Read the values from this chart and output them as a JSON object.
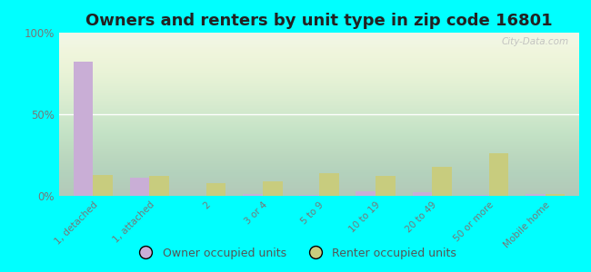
{
  "title": "Owners and renters by unit type in zip code 16801",
  "categories": [
    "1, detached",
    "1, attached",
    "2",
    "3 or 4",
    "5 to 9",
    "10 to 19",
    "20 to 49",
    "50 or more",
    "Mobile home"
  ],
  "owner_values": [
    82,
    11,
    0,
    1,
    0.5,
    3,
    2,
    0.5,
    1
  ],
  "renter_values": [
    13,
    12,
    8,
    9,
    14,
    12,
    18,
    26,
    1
  ],
  "owner_color": "#c9aed6",
  "renter_color": "#c8cc7e",
  "background_color": "#00ffff",
  "title_fontsize": 13,
  "legend_owner": "Owner occupied units",
  "legend_renter": "Renter occupied units",
  "ylim": [
    0,
    100
  ],
  "yticks": [
    0,
    50,
    100
  ],
  "ytick_labels": [
    "0%",
    "50%",
    "100%"
  ],
  "bar_width": 0.35,
  "watermark": "City-Data.com"
}
